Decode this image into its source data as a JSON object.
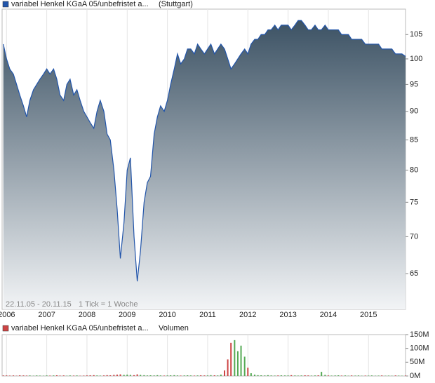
{
  "chart_data": [
    {
      "type": "area",
      "annotation": "22.11.05 - 20.11.15",
      "note": "1 Tick = 1 Woche",
      "log_scale": true,
      "grid": true,
      "x": [
        2005.92,
        2006.0,
        2006.08,
        2006.17,
        2006.25,
        2006.33,
        2006.42,
        2006.5,
        2006.58,
        2006.67,
        2006.75,
        2006.83,
        2006.92,
        2007.0,
        2007.08,
        2007.17,
        2007.25,
        2007.33,
        2007.42,
        2007.5,
        2007.58,
        2007.67,
        2007.75,
        2007.83,
        2007.92,
        2008.0,
        2008.08,
        2008.17,
        2008.25,
        2008.33,
        2008.42,
        2008.5,
        2008.58,
        2008.67,
        2008.75,
        2008.83,
        2008.92,
        2009.0,
        2009.08,
        2009.17,
        2009.25,
        2009.33,
        2009.42,
        2009.5,
        2009.58,
        2009.67,
        2009.75,
        2009.83,
        2009.92,
        2010.0,
        2010.08,
        2010.17,
        2010.25,
        2010.33,
        2010.42,
        2010.5,
        2010.58,
        2010.67,
        2010.75,
        2010.83,
        2010.92,
        2011.0,
        2011.08,
        2011.17,
        2011.25,
        2011.33,
        2011.42,
        2011.5,
        2011.58,
        2011.67,
        2011.75,
        2011.83,
        2011.92,
        2012.0,
        2012.08,
        2012.17,
        2012.25,
        2012.33,
        2012.42,
        2012.5,
        2012.58,
        2012.67,
        2012.75,
        2012.83,
        2012.92,
        2013.0,
        2013.08,
        2013.17,
        2013.25,
        2013.33,
        2013.42,
        2013.5,
        2013.58,
        2013.67,
        2013.75,
        2013.83,
        2013.92,
        2014.0,
        2014.08,
        2014.17,
        2014.25,
        2014.33,
        2014.42,
        2014.5,
        2014.58,
        2014.67,
        2014.75,
        2014.83,
        2014.92,
        2015.0,
        2015.08,
        2015.17,
        2015.25,
        2015.33,
        2015.42,
        2015.5,
        2015.58,
        2015.67,
        2015.75,
        2015.83,
        2015.92
      ],
      "series": [
        {
          "name": "variabel Henkel KGaA 05/unbefristet a...",
          "suffix": "(Stuttgart)",
          "color": "#2255aa",
          "values": [
            103,
            100,
            98,
            97,
            95,
            93,
            91,
            89,
            92,
            94,
            95,
            96,
            97,
            98,
            97,
            98,
            96,
            93,
            92,
            95,
            96,
            93,
            94,
            92,
            90,
            89,
            88,
            87,
            90,
            92,
            90,
            86,
            85,
            80,
            74,
            67,
            72,
            80,
            82,
            70,
            64,
            68,
            75,
            78,
            79,
            86,
            89,
            91,
            90,
            92,
            95,
            98,
            101,
            99,
            100,
            102,
            102,
            101,
            103,
            102,
            101,
            102,
            103,
            101,
            102,
            103,
            102,
            100,
            98,
            99,
            100,
            101,
            102,
            101,
            103,
            104,
            104,
            105,
            105,
            106,
            106,
            107,
            106,
            107,
            107,
            107,
            106,
            107,
            108,
            108,
            107,
            106,
            106,
            107,
            106,
            106,
            107,
            106,
            106,
            106,
            106,
            105,
            105,
            105,
            104,
            104,
            104,
            104,
            103,
            103,
            103,
            103,
            103,
            102,
            102,
            102,
            102,
            101,
            101,
            101,
            100.5
          ]
        }
      ],
      "xlim": [
        2005.89,
        2015.92
      ],
      "xticks": [
        2006,
        2007,
        2008,
        2009,
        2010,
        2011,
        2012,
        2013,
        2014,
        2015
      ],
      "ylim": [
        60.5,
        110.5
      ],
      "yticks": [
        65,
        70,
        75,
        80,
        85,
        90,
        95,
        100,
        105
      ]
    },
    {
      "type": "bar",
      "grid": true,
      "up_color": "#55aa55",
      "down_color": "#cc4444",
      "x": [
        2005.92,
        2006.0,
        2006.08,
        2006.17,
        2006.25,
        2006.33,
        2006.42,
        2006.5,
        2006.58,
        2006.67,
        2006.75,
        2006.83,
        2006.92,
        2007.0,
        2007.08,
        2007.17,
        2007.25,
        2007.33,
        2007.42,
        2007.5,
        2007.58,
        2007.67,
        2007.75,
        2007.83,
        2007.92,
        2008.0,
        2008.08,
        2008.17,
        2008.25,
        2008.33,
        2008.42,
        2008.5,
        2008.58,
        2008.67,
        2008.75,
        2008.83,
        2008.92,
        2009.0,
        2009.08,
        2009.17,
        2009.25,
        2009.33,
        2009.42,
        2009.5,
        2009.58,
        2009.67,
        2009.75,
        2009.83,
        2009.92,
        2010.0,
        2010.08,
        2010.17,
        2010.25,
        2010.33,
        2010.42,
        2010.5,
        2010.58,
        2010.67,
        2010.75,
        2010.83,
        2010.92,
        2011.0,
        2011.08,
        2011.17,
        2011.25,
        2011.33,
        2011.42,
        2011.5,
        2011.58,
        2011.67,
        2011.75,
        2011.83,
        2011.92,
        2012.0,
        2012.08,
        2012.17,
        2012.25,
        2012.33,
        2012.42,
        2012.5,
        2012.58,
        2012.67,
        2012.75,
        2012.83,
        2012.92,
        2013.0,
        2013.08,
        2013.17,
        2013.25,
        2013.33,
        2013.42,
        2013.5,
        2013.58,
        2013.67,
        2013.75,
        2013.83,
        2013.92,
        2014.0,
        2014.08,
        2014.17,
        2014.25,
        2014.33,
        2014.42,
        2014.5,
        2014.58,
        2014.67,
        2014.75,
        2014.83,
        2014.92,
        2015.0,
        2015.08,
        2015.17,
        2015.25,
        2015.33,
        2015.42,
        2015.5,
        2015.58,
        2015.67,
        2015.75,
        2015.83,
        2015.92
      ],
      "series": [
        {
          "name": "variabel Henkel KGaA 05/unbefristet a...",
          "suffix": "Volumen",
          "color": "#cc4444",
          "values": [
            2000000,
            2000000,
            1500000,
            2000000,
            1000000,
            2500000,
            2000000,
            1500000,
            2000000,
            1000000,
            2000000,
            1500000,
            1000000,
            2000000,
            1500000,
            2000000,
            2500000,
            1500000,
            2000000,
            1000000,
            2000000,
            1500000,
            2000000,
            1000000,
            1500000,
            2000000,
            2500000,
            3000000,
            2000000,
            1500000,
            2000000,
            3000000,
            2500000,
            4000000,
            5000000,
            6000000,
            4000000,
            5000000,
            4000000,
            3000000,
            6000000,
            4000000,
            3000000,
            2000000,
            2500000,
            2000000,
            3000000,
            2000000,
            1500000,
            2000000,
            2500000,
            3000000,
            2000000,
            1500000,
            2000000,
            2500000,
            2000000,
            1500000,
            2000000,
            2500000,
            2000000,
            2000000,
            3000000,
            2500000,
            2000000,
            5000000,
            20000000,
            60000000,
            120000000,
            130000000,
            90000000,
            110000000,
            70000000,
            30000000,
            10000000,
            5000000,
            3000000,
            2500000,
            2000000,
            3000000,
            2000000,
            1500000,
            2000000,
            2500000,
            2000000,
            2000000,
            3000000,
            2000000,
            1500000,
            2000000,
            2500000,
            2000000,
            1500000,
            2000000,
            2500000,
            15000000,
            4000000,
            2000000,
            1500000,
            2000000,
            2500000,
            1500000,
            2000000,
            1000000,
            2000000,
            1500000,
            2000000,
            1000000,
            1500000,
            1500000,
            2000000,
            1000000,
            1500000,
            2000000,
            1000000,
            1500000,
            1000000,
            2000000,
            1500000,
            1000000,
            1500000
          ]
        }
      ],
      "xlim": [
        2005.89,
        2015.92
      ],
      "xticks": [
        2006,
        2007,
        2008,
        2009,
        2010,
        2011,
        2012,
        2013,
        2014,
        2015
      ],
      "ylim": [
        0,
        150000000
      ],
      "yticks": [
        {
          "value": 0,
          "label": "0M"
        },
        {
          "value": 50000000,
          "label": "50M"
        },
        {
          "value": 100000000,
          "label": "100M"
        },
        {
          "value": 150000000,
          "label": "150M"
        }
      ]
    }
  ]
}
